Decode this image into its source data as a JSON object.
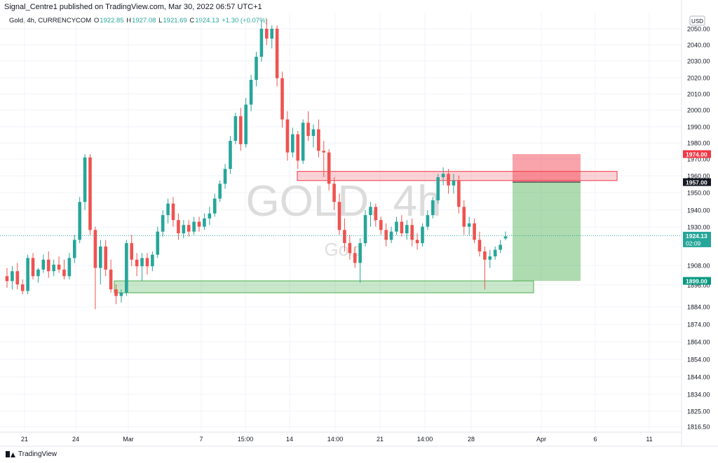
{
  "header": {
    "published": "Signal_Centre1 published on TradingView.com, Mar 30, 2022 06:57 UTC+1",
    "symbol": "Gold, 4h, CURRENCYCOM",
    "o_label": "O",
    "o_value": "1922.85",
    "h_label": "H",
    "h_value": "1927.08",
    "l_label": "L",
    "l_value": "1921.69",
    "c_label": "C",
    "c_value": "1924.13",
    "change": "+1.30 (+0.07%)"
  },
  "watermark": {
    "main": "GOLD, 4h",
    "sub": "Gold"
  },
  "footer": {
    "brand": "TradingView"
  },
  "colors": {
    "up": "#26a69a",
    "down": "#ef5350",
    "grid": "#f0f3fa",
    "price_line": "#26a69a"
  },
  "chart_data": {
    "type": "candlestick",
    "currency_badge": "USD",
    "y_ticks": [
      "2050.00",
      "2040.00",
      "2030.00",
      "2020.00",
      "2010.00",
      "2000.00",
      "1990.00",
      "1980.00",
      "1970.00",
      "1960.00",
      "1950.00",
      "1940.00",
      "1930.00",
      "1908.00",
      "1896.00",
      "1884.00",
      "1874.00",
      "1864.00",
      "1854.00",
      "1844.00",
      "1834.00",
      "1825.00",
      "1816.50"
    ],
    "x_ticks": [
      "21",
      "24",
      "Mar",
      "7",
      "15:00",
      "14",
      "14:00",
      "21",
      "14:00",
      "28",
      "Apr",
      "6",
      "11"
    ],
    "price_labels": [
      {
        "text": "1974.00",
        "value": 1974,
        "color": "#f23645"
      },
      {
        "text": "1957.00",
        "value": 1957,
        "color": "#131722"
      },
      {
        "text": "1924.13",
        "sub": "02:09",
        "value": 1924.13,
        "color": "#26a69a"
      },
      {
        "text": "1899.00",
        "value": 1899,
        "color": "#089981"
      }
    ],
    "zones": [
      {
        "name": "resistance",
        "from": 1960.5,
        "to": 1963.5
      },
      {
        "name": "support",
        "from": 1894,
        "to": 1900
      }
    ],
    "position": {
      "entry": 1957,
      "stop": 1974,
      "target": 1899
    },
    "candles": [
      {
        "o": 1900,
        "h": 1905,
        "l": 1893,
        "c": 1897
      },
      {
        "o": 1897,
        "h": 1906,
        "l": 1892,
        "c": 1903
      },
      {
        "o": 1903,
        "h": 1908,
        "l": 1892,
        "c": 1895
      },
      {
        "o": 1895,
        "h": 1898,
        "l": 1889,
        "c": 1891
      },
      {
        "o": 1891,
        "h": 1913,
        "l": 1889,
        "c": 1911
      },
      {
        "o": 1911,
        "h": 1914,
        "l": 1898,
        "c": 1900
      },
      {
        "o": 1900,
        "h": 1905,
        "l": 1896,
        "c": 1904
      },
      {
        "o": 1904,
        "h": 1913,
        "l": 1902,
        "c": 1910
      },
      {
        "o": 1910,
        "h": 1915,
        "l": 1899,
        "c": 1903
      },
      {
        "o": 1903,
        "h": 1910,
        "l": 1900,
        "c": 1907
      },
      {
        "o": 1907,
        "h": 1912,
        "l": 1902,
        "c": 1904
      },
      {
        "o": 1904,
        "h": 1910,
        "l": 1898,
        "c": 1900
      },
      {
        "o": 1900,
        "h": 1914,
        "l": 1898,
        "c": 1911
      },
      {
        "o": 1911,
        "h": 1925,
        "l": 1908,
        "c": 1922
      },
      {
        "o": 1922,
        "h": 1948,
        "l": 1920,
        "c": 1945
      },
      {
        "o": 1945,
        "h": 1974,
        "l": 1940,
        "c": 1972
      },
      {
        "o": 1972,
        "h": 1974,
        "l": 1925,
        "c": 1928
      },
      {
        "o": 1928,
        "h": 1930,
        "l": 1880,
        "c": 1905
      },
      {
        "o": 1905,
        "h": 1922,
        "l": 1895,
        "c": 1918
      },
      {
        "o": 1918,
        "h": 1922,
        "l": 1900,
        "c": 1904
      },
      {
        "o": 1904,
        "h": 1910,
        "l": 1890,
        "c": 1892
      },
      {
        "o": 1892,
        "h": 1895,
        "l": 1883,
        "c": 1888
      },
      {
        "o": 1888,
        "h": 1892,
        "l": 1884,
        "c": 1890
      },
      {
        "o": 1890,
        "h": 1922,
        "l": 1888,
        "c": 1920
      },
      {
        "o": 1920,
        "h": 1925,
        "l": 1906,
        "c": 1910
      },
      {
        "o": 1910,
        "h": 1914,
        "l": 1900,
        "c": 1906
      },
      {
        "o": 1906,
        "h": 1914,
        "l": 1897,
        "c": 1911
      },
      {
        "o": 1911,
        "h": 1914,
        "l": 1901,
        "c": 1906
      },
      {
        "o": 1906,
        "h": 1915,
        "l": 1903,
        "c": 1913
      },
      {
        "o": 1913,
        "h": 1930,
        "l": 1911,
        "c": 1927
      },
      {
        "o": 1927,
        "h": 1940,
        "l": 1924,
        "c": 1937
      },
      {
        "o": 1937,
        "h": 1947,
        "l": 1932,
        "c": 1944
      },
      {
        "o": 1944,
        "h": 1948,
        "l": 1930,
        "c": 1934
      },
      {
        "o": 1934,
        "h": 1938,
        "l": 1922,
        "c": 1926
      },
      {
        "o": 1926,
        "h": 1934,
        "l": 1923,
        "c": 1931
      },
      {
        "o": 1931,
        "h": 1934,
        "l": 1924,
        "c": 1927
      },
      {
        "o": 1927,
        "h": 1936,
        "l": 1925,
        "c": 1933
      },
      {
        "o": 1933,
        "h": 1936,
        "l": 1927,
        "c": 1930
      },
      {
        "o": 1930,
        "h": 1938,
        "l": 1928,
        "c": 1935
      },
      {
        "o": 1935,
        "h": 1942,
        "l": 1931,
        "c": 1938
      },
      {
        "o": 1938,
        "h": 1950,
        "l": 1936,
        "c": 1947
      },
      {
        "o": 1947,
        "h": 1958,
        "l": 1945,
        "c": 1956
      },
      {
        "o": 1956,
        "h": 1968,
        "l": 1953,
        "c": 1965
      },
      {
        "o": 1965,
        "h": 1985,
        "l": 1962,
        "c": 1982
      },
      {
        "o": 1982,
        "h": 1999,
        "l": 1980,
        "c": 1997
      },
      {
        "o": 1997,
        "h": 2002,
        "l": 1976,
        "c": 1980
      },
      {
        "o": 1980,
        "h": 2008,
        "l": 1978,
        "c": 2004
      },
      {
        "o": 2004,
        "h": 2022,
        "l": 2000,
        "c": 2019
      },
      {
        "o": 2019,
        "h": 2036,
        "l": 2015,
        "c": 2033
      },
      {
        "o": 2033,
        "h": 2055,
        "l": 2030,
        "c": 2050
      },
      {
        "o": 2050,
        "h": 2056,
        "l": 2040,
        "c": 2044
      },
      {
        "o": 2044,
        "h": 2052,
        "l": 2038,
        "c": 2050
      },
      {
        "o": 2050,
        "h": 2052,
        "l": 2015,
        "c": 2020
      },
      {
        "o": 2020,
        "h": 2024,
        "l": 1990,
        "c": 1995
      },
      {
        "o": 1995,
        "h": 2000,
        "l": 1970,
        "c": 1975
      },
      {
        "o": 1975,
        "h": 1990,
        "l": 1972,
        "c": 1986
      },
      {
        "o": 1986,
        "h": 1988,
        "l": 1965,
        "c": 1970
      },
      {
        "o": 1970,
        "h": 1995,
        "l": 1968,
        "c": 1993
      },
      {
        "o": 1993,
        "h": 2000,
        "l": 1982,
        "c": 1985
      },
      {
        "o": 1985,
        "h": 1992,
        "l": 1978,
        "c": 1989
      },
      {
        "o": 1989,
        "h": 1995,
        "l": 1972,
        "c": 1976
      },
      {
        "o": 1976,
        "h": 1982,
        "l": 1960,
        "c": 1975
      },
      {
        "o": 1975,
        "h": 1977,
        "l": 1952,
        "c": 1956
      },
      {
        "o": 1956,
        "h": 1960,
        "l": 1940,
        "c": 1945
      },
      {
        "o": 1945,
        "h": 1950,
        "l": 1925,
        "c": 1928
      },
      {
        "o": 1928,
        "h": 1935,
        "l": 1915,
        "c": 1920
      },
      {
        "o": 1920,
        "h": 1925,
        "l": 1910,
        "c": 1914
      },
      {
        "o": 1914,
        "h": 1918,
        "l": 1905,
        "c": 1908
      },
      {
        "o": 1908,
        "h": 1923,
        "l": 1896,
        "c": 1920
      },
      {
        "o": 1920,
        "h": 1940,
        "l": 1918,
        "c": 1937
      },
      {
        "o": 1937,
        "h": 1945,
        "l": 1930,
        "c": 1942
      },
      {
        "o": 1942,
        "h": 1944,
        "l": 1930,
        "c": 1934
      },
      {
        "o": 1934,
        "h": 1936,
        "l": 1925,
        "c": 1928
      },
      {
        "o": 1928,
        "h": 1932,
        "l": 1918,
        "c": 1922
      },
      {
        "o": 1922,
        "h": 1930,
        "l": 1920,
        "c": 1927
      },
      {
        "o": 1927,
        "h": 1936,
        "l": 1925,
        "c": 1933
      },
      {
        "o": 1933,
        "h": 1937,
        "l": 1924,
        "c": 1926
      },
      {
        "o": 1926,
        "h": 1934,
        "l": 1922,
        "c": 1931
      },
      {
        "o": 1931,
        "h": 1935,
        "l": 1918,
        "c": 1922
      },
      {
        "o": 1922,
        "h": 1926,
        "l": 1916,
        "c": 1920
      },
      {
        "o": 1920,
        "h": 1932,
        "l": 1918,
        "c": 1930
      },
      {
        "o": 1930,
        "h": 1940,
        "l": 1928,
        "c": 1937
      },
      {
        "o": 1937,
        "h": 1948,
        "l": 1935,
        "c": 1946
      },
      {
        "o": 1946,
        "h": 1962,
        "l": 1944,
        "c": 1960
      },
      {
        "o": 1960,
        "h": 1966,
        "l": 1955,
        "c": 1962
      },
      {
        "o": 1962,
        "h": 1965,
        "l": 1950,
        "c": 1955
      },
      {
        "o": 1955,
        "h": 1962,
        "l": 1950,
        "c": 1958
      },
      {
        "o": 1958,
        "h": 1961,
        "l": 1938,
        "c": 1942
      },
      {
        "o": 1942,
        "h": 1946,
        "l": 1925,
        "c": 1930
      },
      {
        "o": 1930,
        "h": 1936,
        "l": 1925,
        "c": 1932
      },
      {
        "o": 1932,
        "h": 1935,
        "l": 1920,
        "c": 1922
      },
      {
        "o": 1922,
        "h": 1927,
        "l": 1912,
        "c": 1915
      },
      {
        "o": 1915,
        "h": 1918,
        "l": 1892,
        "c": 1910
      },
      {
        "o": 1910,
        "h": 1916,
        "l": 1905,
        "c": 1912
      },
      {
        "o": 1912,
        "h": 1918,
        "l": 1910,
        "c": 1916
      },
      {
        "o": 1916,
        "h": 1922,
        "l": 1914,
        "c": 1919
      },
      {
        "o": 1922.85,
        "h": 1927.08,
        "l": 1921.69,
        "c": 1924.13
      }
    ]
  }
}
